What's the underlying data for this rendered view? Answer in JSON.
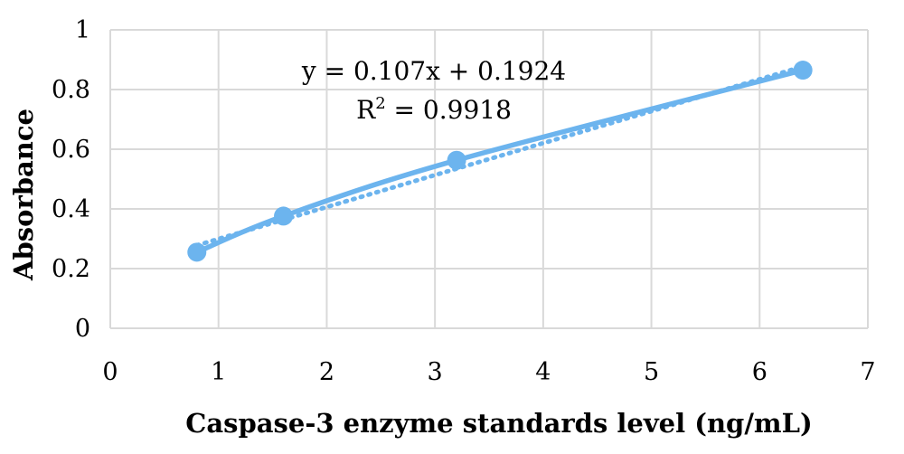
{
  "chart_data": {
    "type": "scatter",
    "xlabel": "Caspase-3 enzyme standards level (ng/mL)",
    "ylabel": "Absorbance",
    "xlim": [
      0,
      7
    ],
    "ylim": [
      0,
      1
    ],
    "x_ticks": [
      "0",
      "1",
      "2",
      "3",
      "4",
      "5",
      "6",
      "7"
    ],
    "y_ticks": [
      "0",
      "0.2",
      "0.4",
      "0.6",
      "0.8",
      "1"
    ],
    "grid": true,
    "series": [
      {
        "x": [
          0.8,
          1.6,
          3.2,
          6.4
        ],
        "y": [
          0.255,
          0.376,
          0.563,
          0.865
        ],
        "color": "#6cb4ee",
        "line": "smooth"
      }
    ],
    "trendline": {
      "type": "linear",
      "slope": 0.107,
      "intercept": 0.1924,
      "style": "dotted",
      "color": "#6cb4ee"
    },
    "annotations": {
      "equation": "y = 0.107x + 0.1924",
      "r2_prefix": "R",
      "r2_sup": "2",
      "r2_suffix": " = 0.9918"
    }
  }
}
